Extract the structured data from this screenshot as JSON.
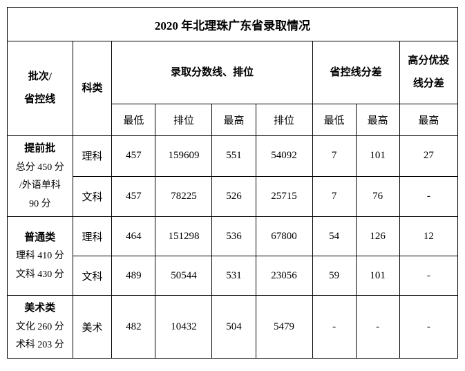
{
  "title": "2020 年北理珠广东省录取情况",
  "headers": {
    "batch": "批次/\n省控线",
    "subject": "科类",
    "score_rank": "录取分数线、排位",
    "prov_diff": "省控线分差",
    "high_diff": "高分优投\n线分差",
    "min": "最低",
    "rank": "排位",
    "max": "最高",
    "hp_max": "最高"
  },
  "batches": [
    {
      "name_bold": "提前批",
      "name_small": "总分 450 分\n/外语单科\n90 分",
      "rows": [
        {
          "subject": "理科",
          "min": "457",
          "rank1": "159609",
          "max": "551",
          "rank2": "54092",
          "dmin": "7",
          "dmax": "101",
          "hp": "27"
        },
        {
          "subject": "文科",
          "min": "457",
          "rank1": "78225",
          "max": "526",
          "rank2": "25715",
          "dmin": "7",
          "dmax": "76",
          "hp": "-"
        }
      ]
    },
    {
      "name_bold": "普通类",
      "name_small": "理科 410 分\n文科 430 分",
      "rows": [
        {
          "subject": "理科",
          "min": "464",
          "rank1": "151298",
          "max": "536",
          "rank2": "67800",
          "dmin": "54",
          "dmax": "126",
          "hp": "12"
        },
        {
          "subject": "文科",
          "min": "489",
          "rank1": "50544",
          "max": "531",
          "rank2": "23056",
          "dmin": "59",
          "dmax": "101",
          "hp": "-"
        }
      ]
    },
    {
      "name_bold": "美术类",
      "name_small": "文化 260 分\n术科 203 分",
      "rows": [
        {
          "subject": "美术",
          "min": "482",
          "rank1": "10432",
          "max": "504",
          "rank2": "5479",
          "dmin": "-",
          "dmax": "-",
          "hp": "-"
        }
      ]
    }
  ]
}
